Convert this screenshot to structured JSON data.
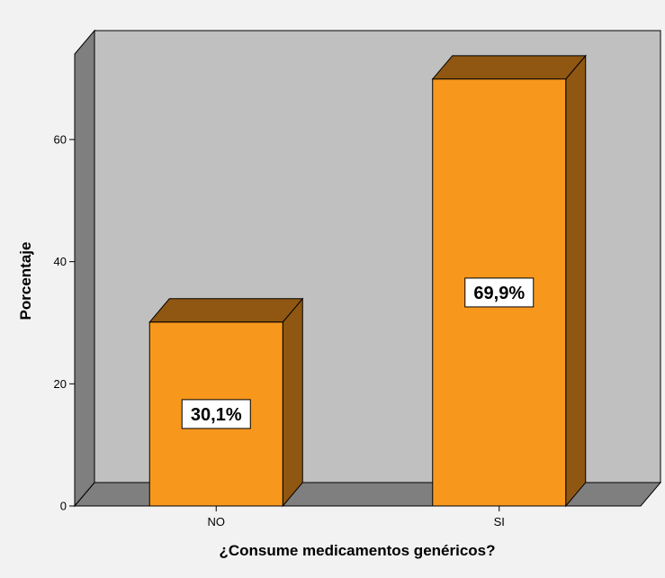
{
  "chart_data": {
    "type": "bar",
    "style": "3d",
    "categories": [
      "NO",
      "SI"
    ],
    "values": [
      30.1,
      69.9
    ],
    "data_labels": [
      "30,1%",
      "69,9%"
    ],
    "title": "",
    "xlabel": "¿Consume medicamentos genéricos?",
    "ylabel": "Porcentaje",
    "ylim": [
      0,
      74
    ],
    "yticks": [
      0,
      20,
      40,
      60
    ],
    "ytick_labels": [
      "0",
      "20",
      "40",
      "60"
    ],
    "grid": false,
    "legend": "none",
    "colors": {
      "bar_front": "#f7981d",
      "bar_top": "#8f5712",
      "bar_side": "#8f5712",
      "back_wall": "#c0c0c0",
      "side_wall": "#7f7f7f",
      "floor": "#7f7f7f",
      "background": "#f2f2f2",
      "label_box": "#ffffff"
    }
  }
}
